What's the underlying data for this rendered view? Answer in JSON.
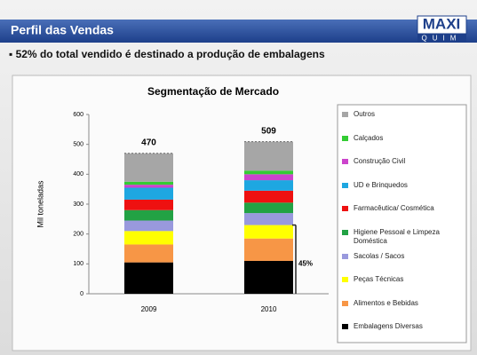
{
  "header": {
    "title": "Perfil das Vendas",
    "logo_top": "MAXI",
    "logo_bottom": "QUIM",
    "subtitle": "▪ 52% do total vendido é destinado a produção de embalagens"
  },
  "chart_data": {
    "type": "stacked_bar",
    "title": "Segmentação de Mercado",
    "ylabel": "Mil toneladas",
    "categories": [
      "2009",
      "2010"
    ],
    "series": [
      {
        "name": "Embalagens Diversas",
        "color": "#000000",
        "values": [
          105,
          110
        ]
      },
      {
        "name": "Alimentos e Bebidas",
        "color": "#f79646",
        "values": [
          60,
          75
        ]
      },
      {
        "name": "Peças Técnicas",
        "color": "#ffff00",
        "values": [
          45,
          45
        ]
      },
      {
        "name": "Sacolas / Sacos",
        "color": "#9999dd",
        "values": [
          35,
          40
        ]
      },
      {
        "name": "Higiene Pessoal e Limpeza Doméstica",
        "color": "#22a244",
        "values": [
          35,
          35
        ]
      },
      {
        "name": "Farmacêutica/ Cosmética",
        "color": "#ee1111",
        "values": [
          35,
          40
        ]
      },
      {
        "name": "UD e Brinquedos",
        "color": "#1ea7e1",
        "values": [
          40,
          35
        ]
      },
      {
        "name": "Construção Civil",
        "color": "#cc44cc",
        "values": [
          10,
          20
        ]
      },
      {
        "name": "Calçados",
        "color": "#33cc33",
        "values": [
          10,
          12
        ]
      },
      {
        "name": "Outros",
        "color": "#a6a6a6",
        "values": [
          95,
          97
        ]
      }
    ],
    "totals": [
      470,
      509
    ],
    "annotation": "45%",
    "ylim": [
      0,
      600
    ],
    "yticks": [
      0,
      100,
      200,
      300,
      400,
      500,
      600
    ],
    "grid": false
  }
}
